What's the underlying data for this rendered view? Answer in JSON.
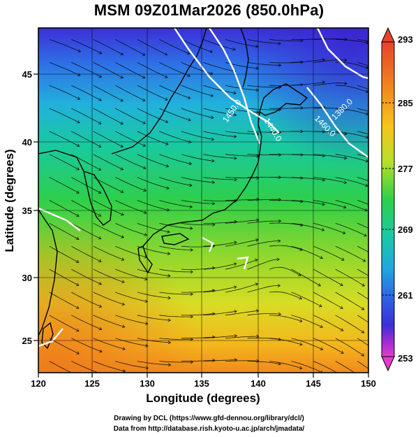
{
  "title": "MSM 09Z01Mar2026 (850.0hPa)",
  "axes": {
    "xlabel": "Longitude (degrees)",
    "ylabel": "Latitude  (degrees)",
    "xticks": [
      "120",
      "125",
      "130",
      "135",
      "140",
      "145",
      "150"
    ],
    "yticks": [
      "45",
      "40",
      "35",
      "30",
      "25"
    ]
  },
  "colorbar": {
    "labels": [
      "293",
      "285",
      "277",
      "269",
      "261",
      "253"
    ],
    "colors": [
      "#e8422d",
      "#f08a1c",
      "#f7c51b",
      "#b8e02a",
      "#2ecf4a",
      "#19c9a8",
      "#22a6e0",
      "#2f5fe6",
      "#3b2fd8",
      "#9d2bd2",
      "#e33ccd"
    ]
  },
  "contours": {
    "labels": [
      "1440.0",
      "1450.0",
      "1460.0",
      "1380.0"
    ]
  },
  "footer": {
    "line1": "Drawing by DCL (https://www.gfd-dennou.org/library/dcl/)",
    "line2": "Data from http://database.rish.kyoto-u.ac.jp/arch/jmadata/"
  }
}
